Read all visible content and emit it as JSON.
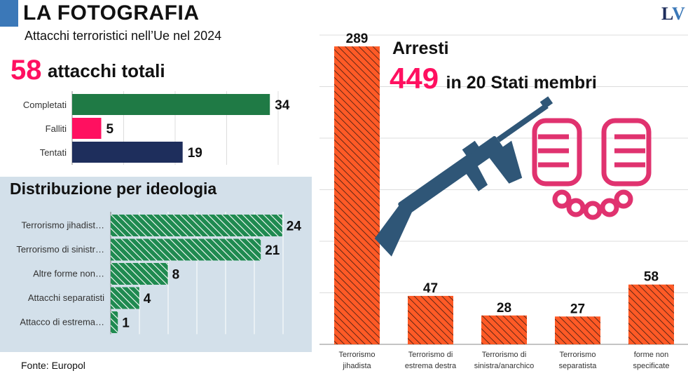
{
  "header": {
    "title": "LA FOTOGRAFIA",
    "subtitle": "Attacchi terroristici nell’Ue nel 2024",
    "logo_l": "L",
    "logo_v": "V"
  },
  "attacks": {
    "total_number": "58",
    "total_label": "attacchi totali"
  },
  "ideology": {
    "title": "Distribuzione per ideologia"
  },
  "arrests": {
    "label": "Arresti",
    "number": "449",
    "text": "in 20 Stati membri"
  },
  "footer": {
    "source": "Fonte: Europol"
  },
  "colors": {
    "accent_pink": "#ff1060",
    "completati": "#1f7a45",
    "falliti": "#ff1060",
    "tentati": "#1e2e5c",
    "ideology_green": "#1f8a50",
    "arrests_orange": "#ff5a26",
    "rifle": "#2f5677",
    "cuffs": "#e0326f"
  },
  "icons": [
    "rifle-icon",
    "handcuffs-icon"
  ],
  "chart_data": [
    {
      "type": "bar",
      "orientation": "horizontal",
      "categories": [
        "Completati",
        "Falliti",
        "Tentati"
      ],
      "values": [
        34,
        5,
        19
      ],
      "xlim": [
        0,
        40
      ],
      "grid": true
    },
    {
      "type": "bar",
      "orientation": "horizontal",
      "title": "Distribuzione per ideologia",
      "categories": [
        "Terrorismo jihadist…",
        "Terrorismo di sinistr…",
        "Altre forme non…",
        "Attacchi separatisti",
        "Attacco di estrema…"
      ],
      "values": [
        24,
        21,
        8,
        4,
        1
      ],
      "xlim": [
        0,
        30
      ],
      "grid": true
    },
    {
      "type": "bar",
      "orientation": "vertical",
      "title": "Arresti",
      "categories": [
        "Terrorismo jihadista",
        "Terrorismo di estrema destra",
        "Terrorismo di sinistra/anarchico",
        "Terrorismo separatista",
        "forme non specificate"
      ],
      "category_lines": [
        [
          "Terrorismo",
          "jihadista"
        ],
        [
          "Terrorismo di",
          "estrema destra"
        ],
        [
          "Terrorismo di",
          "sinistra/anarchico"
        ],
        [
          "Terrorismo",
          "separatista"
        ],
        [
          "forme non",
          "specificate"
        ]
      ],
      "values": [
        289,
        47,
        28,
        27,
        58
      ],
      "ylim": [
        0,
        300
      ],
      "grid": true
    }
  ]
}
